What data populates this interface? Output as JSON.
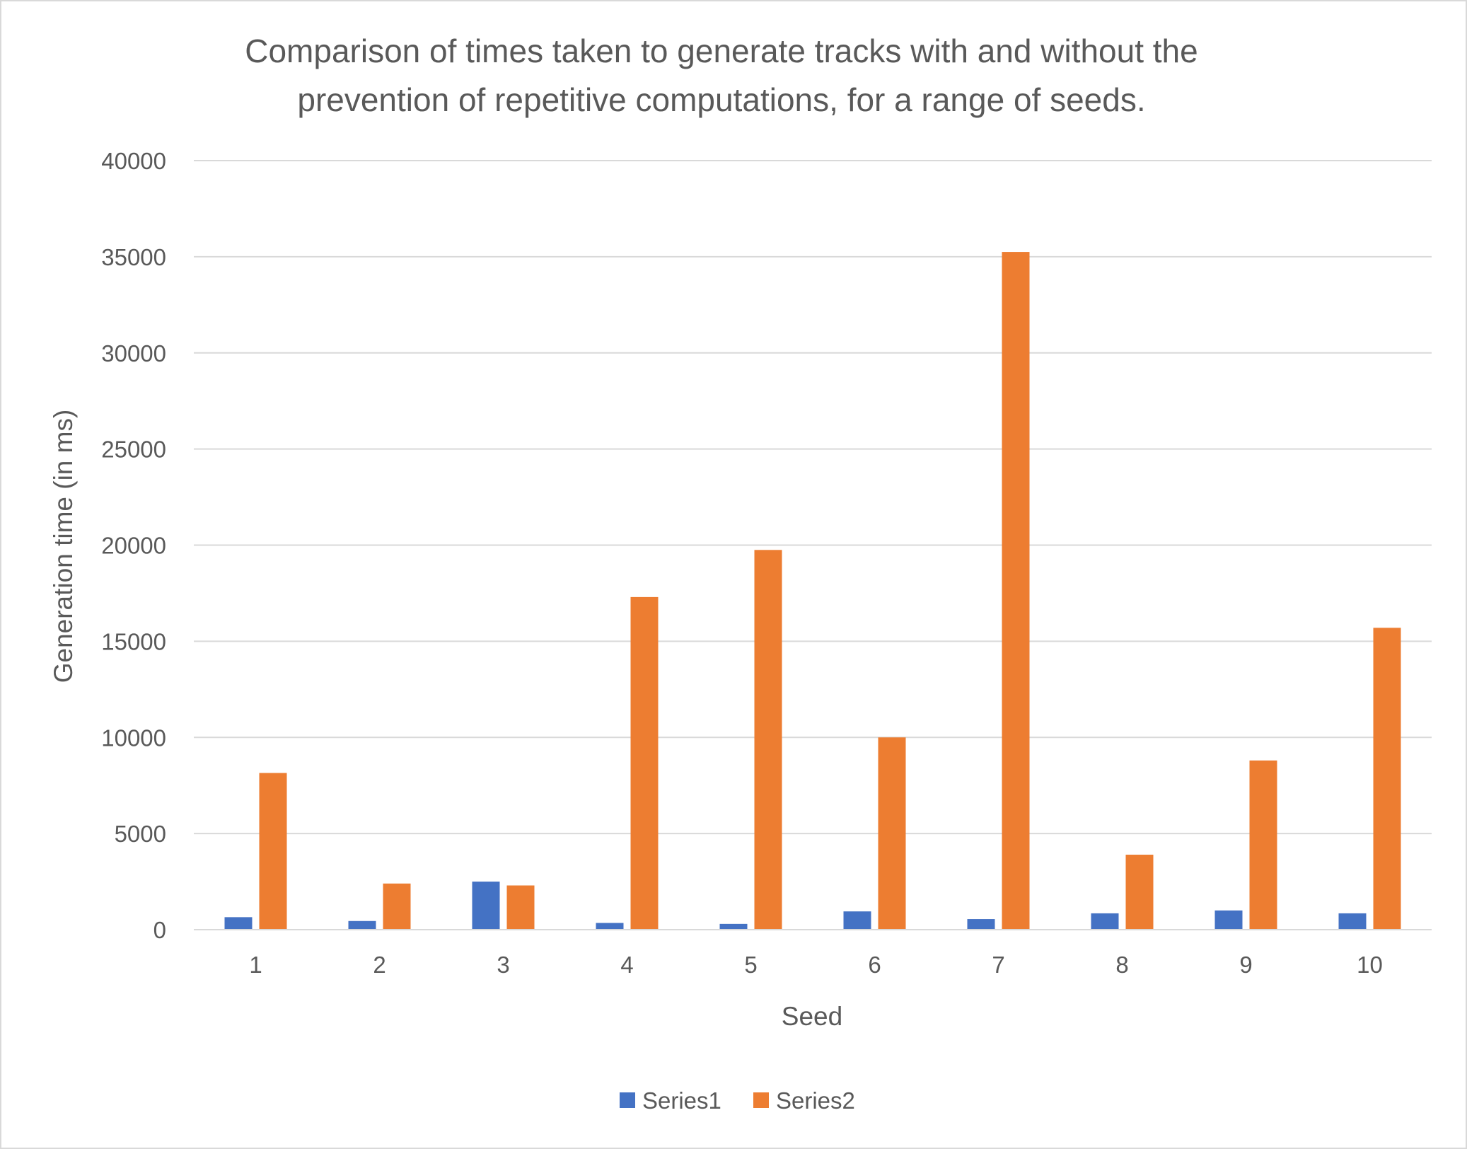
{
  "chart_data": {
    "type": "bar",
    "title_lines": [
      "Comparison of times taken to generate tracks with and without the",
      "prevention of repetitive computations, for a range of seeds."
    ],
    "xlabel": "Seed",
    "ylabel": "Generation time (in ms)",
    "ylim": [
      0,
      40000
    ],
    "y_ticks": [
      "0",
      "5000",
      "10000",
      "15000",
      "20000",
      "25000",
      "30000",
      "35000",
      "40000"
    ],
    "categories": [
      "1",
      "2",
      "3",
      "4",
      "5",
      "6",
      "7",
      "8",
      "9",
      "10"
    ],
    "grid": true,
    "legend_position": "bottom",
    "series": [
      {
        "name": "Series1",
        "color": "#4472C4",
        "values": [
          650,
          450,
          2500,
          350,
          300,
          950,
          550,
          850,
          1000,
          850
        ]
      },
      {
        "name": "Series2",
        "color": "#ED7D31",
        "values": [
          8150,
          2400,
          2300,
          17300,
          19750,
          10000,
          35250,
          3900,
          8800,
          15700
        ]
      }
    ]
  }
}
